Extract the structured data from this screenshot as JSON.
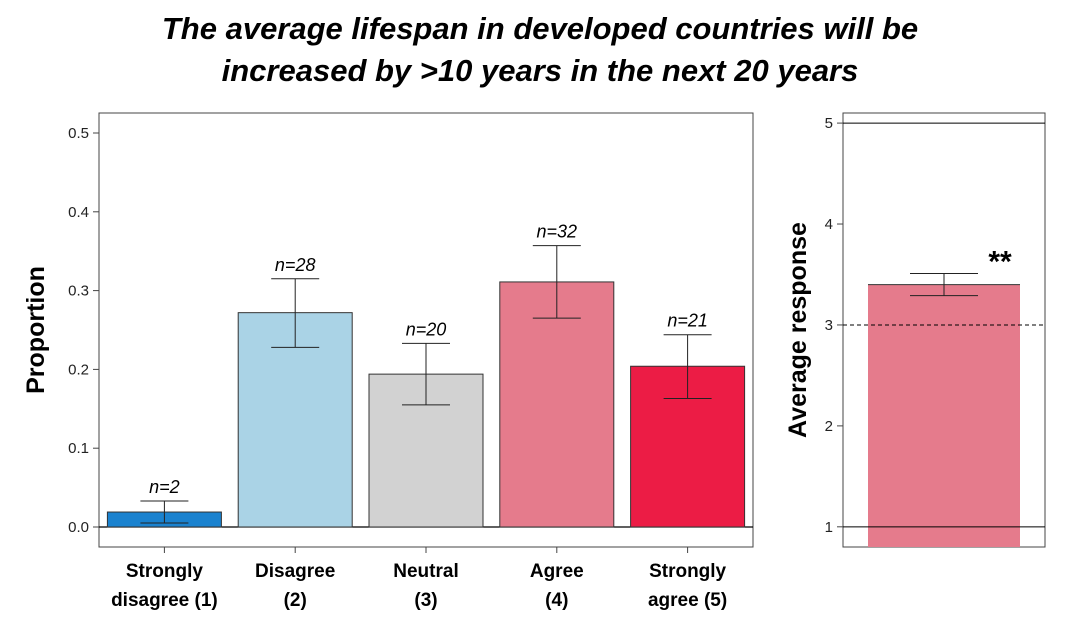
{
  "title_lines": [
    "The average lifespan in developed countries will be",
    "increased by >10 years in the next 20 years"
  ],
  "chart_data": [
    {
      "type": "bar",
      "ylabel": "Proportion",
      "xlabel": "",
      "ylim": [
        0,
        0.5
      ],
      "yticks": [
        "0.0",
        "0.1",
        "0.2",
        "0.3",
        "0.4",
        "0.5"
      ],
      "categories": [
        [
          "Strongly",
          "disagree (1)"
        ],
        [
          "Disagree",
          "(2)"
        ],
        [
          "Neutral",
          "(3)"
        ],
        [
          "Agree",
          "(4)"
        ],
        [
          "Strongly",
          "agree (5)"
        ]
      ],
      "values": [
        0.019,
        0.272,
        0.194,
        0.311,
        0.204
      ],
      "error_low": [
        0.005,
        0.228,
        0.155,
        0.265,
        0.163
      ],
      "error_high": [
        0.033,
        0.315,
        0.233,
        0.357,
        0.244
      ],
      "n_labels": [
        "n=2",
        "n=28",
        "n=20",
        "n=32",
        "n=21"
      ],
      "colors": [
        "#1a82cf",
        "#aad3e6",
        "#d2d2d2",
        "#e57b8c",
        "#ec1c45"
      ],
      "grid": false
    },
    {
      "type": "bar",
      "ylabel": "Average response",
      "ylim": [
        0.8,
        5.1
      ],
      "yticks": [
        "1",
        "2",
        "3",
        "4",
        "5"
      ],
      "value": 3.4,
      "error_low": 3.29,
      "error_high": 3.51,
      "reference_lines": [
        1,
        5
      ],
      "dashed_line": 3,
      "significance": "**",
      "color": "#e57b8c",
      "grid": false
    }
  ]
}
